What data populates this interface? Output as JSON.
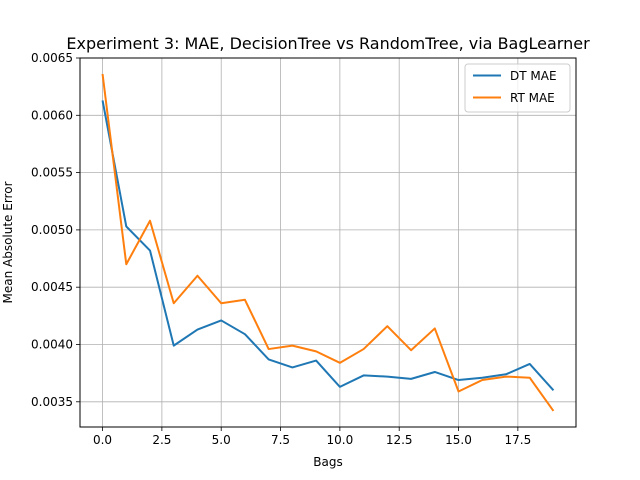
{
  "chart_data": {
    "type": "line",
    "title": "Experiment 3: MAE, DecisionTree vs RandomTree, via BagLearner",
    "xlabel": "Bags",
    "ylabel": "Mean Absolute Error",
    "xlim": [
      -0.95,
      19.95
    ],
    "ylim": [
      0.00328,
      0.0065
    ],
    "x": [
      0,
      1,
      2,
      3,
      4,
      5,
      6,
      7,
      8,
      9,
      10,
      11,
      12,
      13,
      14,
      15,
      16,
      17,
      18,
      19
    ],
    "x_ticks": [
      0.0,
      2.5,
      5.0,
      7.5,
      10.0,
      12.5,
      15.0,
      17.5
    ],
    "x_tick_labels": [
      "0.0",
      "2.5",
      "5.0",
      "7.5",
      "10.0",
      "12.5",
      "15.0",
      "17.5"
    ],
    "y_ticks": [
      0.0035,
      0.004,
      0.0045,
      0.005,
      0.0055,
      0.006,
      0.0065
    ],
    "y_tick_labels": [
      "0.0035",
      "0.0040",
      "0.0045",
      "0.0050",
      "0.0055",
      "0.0060",
      "0.0065"
    ],
    "grid": true,
    "legend_position": "top-right",
    "series": [
      {
        "name": "DT MAE",
        "color": "#1f77b4",
        "values": [
          0.00613,
          0.00503,
          0.00482,
          0.00399,
          0.00413,
          0.00421,
          0.00409,
          0.00387,
          0.0038,
          0.00386,
          0.00363,
          0.00373,
          0.00372,
          0.0037,
          0.00376,
          0.00369,
          0.00371,
          0.00374,
          0.00383,
          0.0036
        ]
      },
      {
        "name": "RT MAE",
        "color": "#ff7f0e",
        "values": [
          0.00636,
          0.0047,
          0.00508,
          0.00436,
          0.0046,
          0.00436,
          0.00439,
          0.00396,
          0.00399,
          0.00394,
          0.00384,
          0.00396,
          0.00416,
          0.00395,
          0.00414,
          0.00359,
          0.00369,
          0.00372,
          0.00371,
          0.00342
        ]
      }
    ]
  }
}
